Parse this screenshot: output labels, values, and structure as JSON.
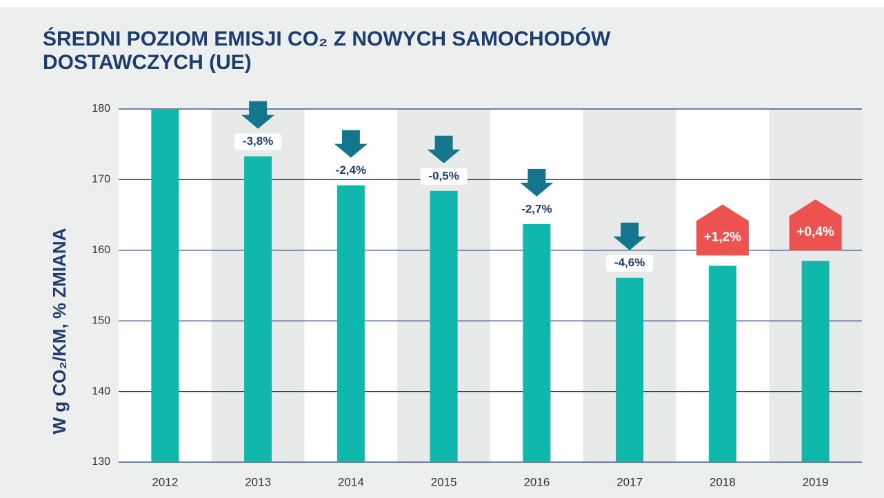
{
  "chart_data": {
    "type": "bar",
    "title": "ŚREDNI POZIOM EMISJI CO₂ Z NOWYCH SAMOCHODÓW DOSTAWCZYCH (UE)",
    "y_label": "W g CO₂/KM, % ZMIANA",
    "categories": [
      "2012",
      "2013",
      "2014",
      "2015",
      "2016",
      "2017",
      "2018",
      "2019"
    ],
    "values": [
      180.0,
      173.3,
      169.2,
      168.4,
      163.7,
      156.1,
      157.8,
      158.5
    ],
    "color": "#10b8ac",
    "change_values": [
      null,
      -3.8,
      -2.4,
      -0.5,
      -2.7,
      -4.6,
      1.2,
      0.4
    ],
    "change_labels": [
      null,
      "-3,8%",
      "-2,4%",
      "-0,5%",
      "-2,7%",
      "-4,6%",
      "+1,2%",
      "+0,4%"
    ],
    "down_color": "#13768b",
    "up_color": "#ec5350",
    "ylim": [
      130,
      180
    ],
    "yticks": [
      130,
      140,
      150,
      160,
      170,
      180
    ],
    "grid": true
  }
}
